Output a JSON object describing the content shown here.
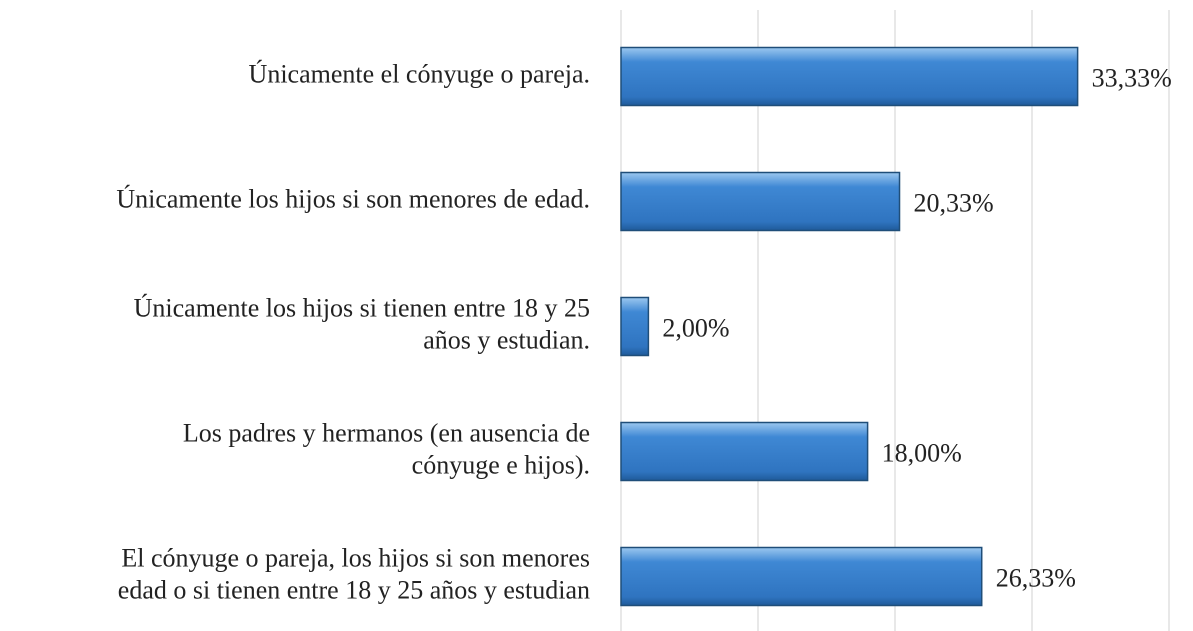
{
  "chart_data": {
    "type": "bar",
    "orientation": "horizontal",
    "categories": [
      [
        "Únicamente el cónyuge o pareja."
      ],
      [
        "Únicamente los hijos si son menores de edad."
      ],
      [
        "Únicamente los hijos si tienen entre 18 y 25",
        "años y estudian."
      ],
      [
        "Los padres y hermanos (en ausencia de",
        "cónyuge e hijos)."
      ],
      [
        "El cónyuge o pareja, los hijos si son menores",
        "edad o si tienen entre 18 y 25 años y estudian"
      ]
    ],
    "values": [
      33.33,
      20.33,
      2.0,
      18.0,
      26.33
    ],
    "value_labels": [
      "33,33%",
      "20,33%",
      "2,00%",
      "18,00%",
      "26,33%"
    ],
    "color": "#3f88d4",
    "xlim": [
      0,
      40
    ],
    "xticks": [
      0,
      10,
      20,
      30,
      40
    ],
    "grid": true
  }
}
